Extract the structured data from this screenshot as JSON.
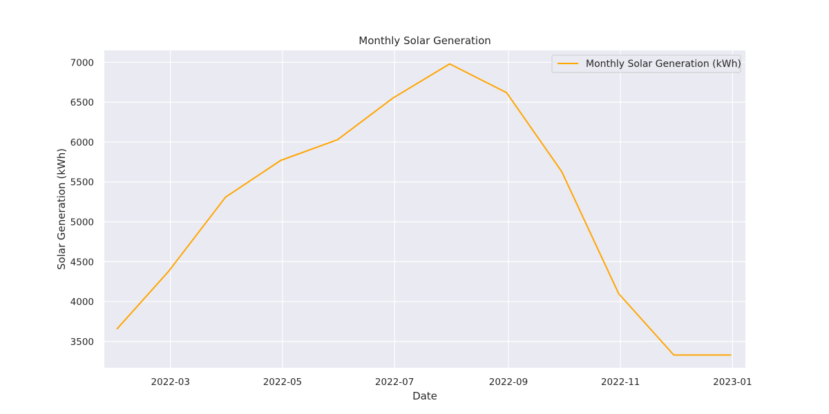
{
  "chart_data": {
    "type": "line",
    "title": "Monthly Solar Generation",
    "xlabel": "Date",
    "ylabel": "Solar Generation (kWh)",
    "x_axis": "date",
    "xlim": [
      "2022-01-24",
      "2023-01-08"
    ],
    "ylim": [
      3170,
      7150
    ],
    "x_ticks": [
      "2022-03",
      "2022-05",
      "2022-07",
      "2022-09",
      "2022-11",
      "2023-01"
    ],
    "y_ticks": [
      3500,
      4000,
      4500,
      5000,
      5500,
      6000,
      6500,
      7000
    ],
    "grid": true,
    "legend_position": "top-right",
    "series": [
      {
        "name": "Monthly Solar Generation (kWh)",
        "color": "#ffa500",
        "x": [
          "2022-01-31",
          "2022-02-28",
          "2022-03-31",
          "2022-04-30",
          "2022-05-31",
          "2022-06-30",
          "2022-07-31",
          "2022-08-31",
          "2022-09-30",
          "2022-10-31",
          "2022-11-30",
          "2022-12-31"
        ],
        "values": [
          3660,
          4380,
          5310,
          5770,
          6030,
          6550,
          6980,
          6620,
          5630,
          4100,
          3330,
          3330
        ]
      }
    ]
  },
  "colors": {
    "plot_background": "#eaeaf2",
    "grid": "#ffffff",
    "text": "#262626"
  }
}
